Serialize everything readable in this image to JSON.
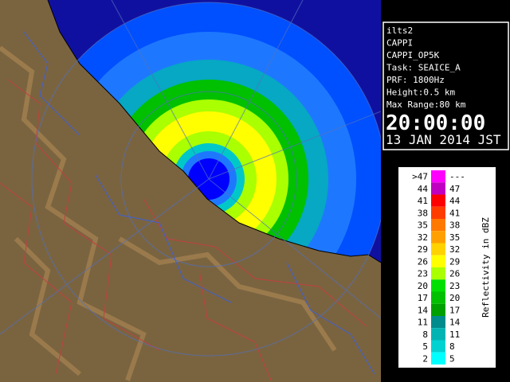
{
  "info": {
    "lines": [
      "ilts2",
      "CAPPI",
      "CAPPI_OP5K",
      "Task: SEAICE_A",
      "PRF: 1800Hz",
      "Height:0.5 km",
      "Max Range:80 km"
    ],
    "time": "20:00:00",
    "date": "13 JAN 2014 JST"
  },
  "legend": {
    "title": "Reflectivity in dBZ",
    "rows": [
      {
        "low": ">47",
        "high": "---",
        "color": "#ff00ff"
      },
      {
        "low": "44",
        "high": "47",
        "color": "#c000c0"
      },
      {
        "low": "41",
        "high": "44",
        "color": "#ff0000"
      },
      {
        "low": "38",
        "high": "41",
        "color": "#ff3c00"
      },
      {
        "low": "35",
        "high": "38",
        "color": "#ff7800"
      },
      {
        "low": "32",
        "high": "35",
        "color": "#ffa000"
      },
      {
        "low": "29",
        "high": "32",
        "color": "#ffd200"
      },
      {
        "low": "26",
        "high": "29",
        "color": "#ffff00"
      },
      {
        "low": "23",
        "high": "26",
        "color": "#aaff00"
      },
      {
        "low": "20",
        "high": "23",
        "color": "#00e000"
      },
      {
        "low": "17",
        "high": "20",
        "color": "#00c000"
      },
      {
        "low": "14",
        "high": "17",
        "color": "#00a000"
      },
      {
        "low": "11",
        "high": "14",
        "color": "#008c8c"
      },
      {
        "low": "8",
        "high": "11",
        "color": "#00b4b4"
      },
      {
        "low": "5",
        "high": "8",
        "color": "#00d2d2"
      },
      {
        "low": "2",
        "high": "5",
        "color": "#00ffff"
      }
    ]
  }
}
